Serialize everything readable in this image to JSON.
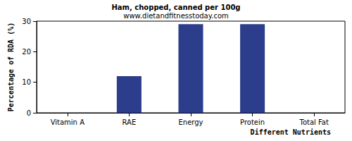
{
  "chart_data": {
    "type": "bar",
    "title": "Ham, chopped, canned per 100g",
    "subtitle": "www.dietandfitnesstoday.com",
    "xlabel": "Different Nutrients",
    "ylabel": "Percentage of RDA (%)",
    "categories": [
      "Vitamin A",
      "RAE",
      "Energy",
      "Protein",
      "Total Fat"
    ],
    "values": [
      0,
      12,
      29,
      29,
      0
    ],
    "color": "#2b3d8b",
    "ylim": [
      0,
      30
    ],
    "yticks": [
      0,
      10,
      20,
      30
    ],
    "grid": false
  }
}
